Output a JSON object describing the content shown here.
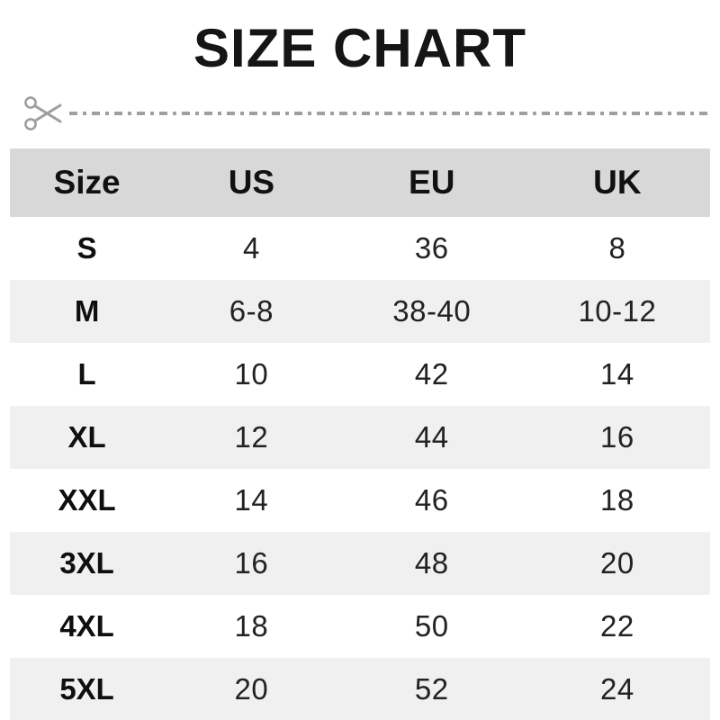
{
  "title": "SIZE CHART",
  "cut_line": {
    "icon": "scissors-icon",
    "style": "dash-dot"
  },
  "chart_data": {
    "type": "table",
    "title": "SIZE CHART",
    "columns": [
      "Size",
      "US",
      "EU",
      "UK"
    ],
    "rows": [
      [
        "S",
        "4",
        "36",
        "8"
      ],
      [
        "M",
        "6-8",
        "38-40",
        "10-12"
      ],
      [
        "L",
        "10",
        "42",
        "14"
      ],
      [
        "XL",
        "12",
        "44",
        "16"
      ],
      [
        "XXL",
        "14",
        "46",
        "18"
      ],
      [
        "3XL",
        "16",
        "48",
        "20"
      ],
      [
        "4XL",
        "18",
        "50",
        "22"
      ],
      [
        "5XL",
        "20",
        "52",
        "24"
      ]
    ],
    "layout_hints": {
      "header_background": "#d8d8d8",
      "zebra_stripe_background": "#f0f0f0",
      "stripe_pattern": "even rows shaded, starting with row M",
      "grid": "off"
    }
  },
  "colors": {
    "header_bg": "#d8d8d8",
    "alt_row_bg": "#f0f0f0",
    "row_bg": "#ffffff",
    "text": "#1c1c1c",
    "cut_line": "#9f9f9f"
  }
}
